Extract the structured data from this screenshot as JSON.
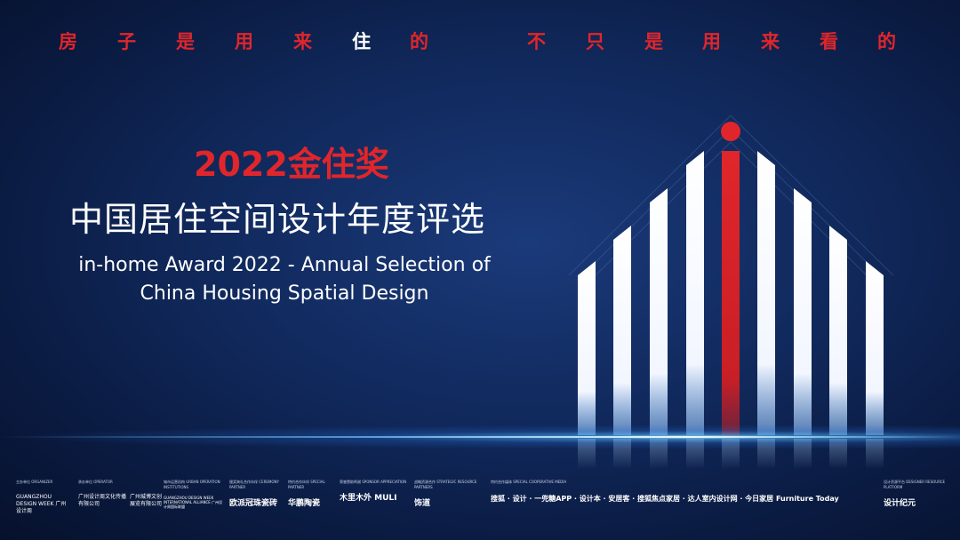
{
  "colors": {
    "accent_red": "#e0262b",
    "white": "#ffffff",
    "bg_dark": "#0a1a40"
  },
  "slogan": [
    {
      "char": "房",
      "color": "#e0262b"
    },
    {
      "char": "子",
      "color": "#e0262b"
    },
    {
      "char": "是",
      "color": "#e0262b"
    },
    {
      "char": "用",
      "color": "#e0262b"
    },
    {
      "char": "来",
      "color": "#e0262b"
    },
    {
      "char": "住",
      "color": "#ffffff"
    },
    {
      "char": "的",
      "color": "#e0262b"
    },
    {
      "char": "不",
      "color": "#e0262b"
    },
    {
      "char": "只",
      "color": "#e0262b"
    },
    {
      "char": "是",
      "color": "#e0262b"
    },
    {
      "char": "用",
      "color": "#e0262b"
    },
    {
      "char": "来",
      "color": "#e0262b"
    },
    {
      "char": "看",
      "color": "#e0262b"
    },
    {
      "char": "的",
      "color": "#e0262b"
    }
  ],
  "title": {
    "award_cn": "2022金住奖",
    "main_cn": "中国居住空间设计年度评选",
    "en_line1": "in-home Award  2022 - Annual Selection of",
    "en_line2": "China Housing Spatial Design"
  },
  "footer": {
    "sponsors": [
      {
        "role": "主办单位 ORGANIZER",
        "name": "GUANGZHOU DESIGN WEEK 广州设计周"
      },
      {
        "role": "承办单位 OPERATOR",
        "name": "广州设计周文化传播有限公司"
      },
      {
        "role": "",
        "name": "广州城博文创展览有限公司"
      },
      {
        "role": "城市运营机构 URBAN OPERATION INSTITUTIONS",
        "name": "GUANGZHOU DESIGN WEEK INTERNATIONAL ALLIANCE 广州设计周国际联盟"
      },
      {
        "role": "颁奖典礼合作伙伴 CEREMONY PARTNER",
        "name": "欧派冠珠瓷砖"
      },
      {
        "role": "特约合作伙伴 SPECIAL PARTNER",
        "name": "华鹏陶瓷"
      },
      {
        "role": "荣誉赞助鸣谢 SPONSOR APPRECIATION",
        "name": "木里木外 MULI"
      },
      {
        "role": "战略资源合作 STRATEGIC RESOURCE PARTNERS",
        "name": "饰道"
      },
      {
        "role": "特约合作媒体 SPECIAL COOPERATIVE MEDIA",
        "name": "搜狐 · 设计 · 一兜糖APP · 设计本 · 安居客 · 搜狐焦点家居 · 达人室内设计网 · 今日家居 Furniture Today"
      },
      {
        "role": "设计资源平台 DESIGNER RESOURCE PLATFORM",
        "name": "设计纪元"
      }
    ]
  }
}
